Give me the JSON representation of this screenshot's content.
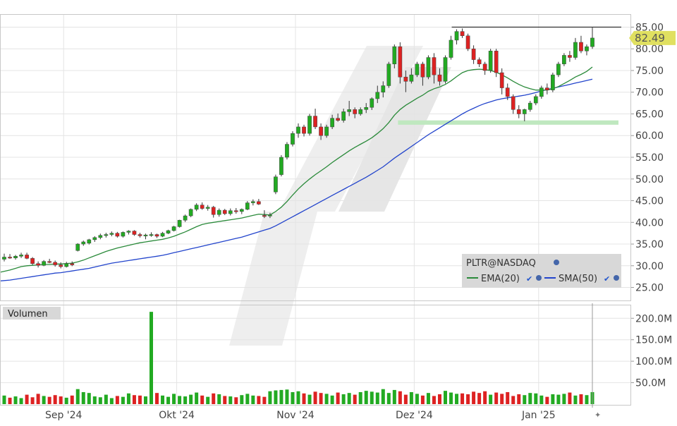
{
  "chart_data": {
    "type": "candlestick",
    "symbol": "PLTR@NASDAQ",
    "last_price": "82.49",
    "colors": {
      "up": "#22aa22",
      "down": "#dd2222",
      "ema": "#2a8a3a",
      "sma": "#2244cc",
      "price_label_bg": "#e0e060",
      "support_zone": "#bfe8bf"
    },
    "price_axis": {
      "min": 22,
      "max": 88,
      "ticks": [
        25,
        30,
        35,
        40,
        45,
        50,
        55,
        60,
        65,
        70,
        75,
        80,
        85
      ],
      "tick_labels": [
        "25.00",
        "30.00",
        "35.00",
        "40.00",
        "45.00",
        "50.00",
        "55.00",
        "60.00",
        "65.00",
        "70.00",
        "75.00",
        "80.00",
        "85.00"
      ]
    },
    "volume_axis": {
      "min": 0,
      "max": 230,
      "ticks": [
        50,
        100,
        150,
        200
      ],
      "tick_labels": [
        "50.0M",
        "100.0M",
        "150.0M",
        "200.0M"
      ]
    },
    "time_axis": {
      "labels": [
        "Sep '24",
        "Okt '24",
        "Nov '24",
        "Dez '24",
        "Jan '25"
      ],
      "label_index": [
        10,
        30,
        51,
        72,
        94
      ]
    },
    "legend": {
      "title": "PLTR@NASDAQ",
      "series": [
        "EMA(20)",
        "SMA(50)"
      ]
    },
    "volume_panel_label": "Volumen",
    "resistance_line": 85.0,
    "support_zone": [
      62.5,
      63.5
    ],
    "candles": [
      [
        31.5,
        32.8,
        31.0,
        32.0
      ],
      [
        32.0,
        32.7,
        31.6,
        31.8
      ],
      [
        31.8,
        32.5,
        31.4,
        32.2
      ],
      [
        32.2,
        33.0,
        31.8,
        32.5
      ],
      [
        32.5,
        33.0,
        31.5,
        31.7
      ],
      [
        31.7,
        32.0,
        30.2,
        30.5
      ],
      [
        30.5,
        31.0,
        29.6,
        30.1
      ],
      [
        30.1,
        31.3,
        29.9,
        31.0
      ],
      [
        31.0,
        31.6,
        30.6,
        30.8
      ],
      [
        30.8,
        31.2,
        29.8,
        30.2
      ],
      [
        30.2,
        30.8,
        29.4,
        29.8
      ],
      [
        29.8,
        30.9,
        29.6,
        30.5
      ],
      [
        30.5,
        31.0,
        29.9,
        30.2
      ],
      [
        33.5,
        35.2,
        33.3,
        35.0
      ],
      [
        35.0,
        35.8,
        34.6,
        35.5
      ],
      [
        35.2,
        36.2,
        34.9,
        36.0
      ],
      [
        36.0,
        36.8,
        35.5,
        36.5
      ],
      [
        36.5,
        37.4,
        36.1,
        37.0
      ],
      [
        37.0,
        37.6,
        36.5,
        37.2
      ],
      [
        37.2,
        37.9,
        36.8,
        37.5
      ],
      [
        37.5,
        37.8,
        36.5,
        36.8
      ],
      [
        36.8,
        37.9,
        36.5,
        37.7
      ],
      [
        37.7,
        38.2,
        37.2,
        38.0
      ],
      [
        38.0,
        38.2,
        36.9,
        37.2
      ],
      [
        37.2,
        37.6,
        36.5,
        36.9
      ],
      [
        36.9,
        37.4,
        36.1,
        37.1
      ],
      [
        37.1,
        37.7,
        36.7,
        37.2
      ],
      [
        37.2,
        37.4,
        36.4,
        36.8
      ],
      [
        36.8,
        37.8,
        36.6,
        37.5
      ],
      [
        37.5,
        38.3,
        37.3,
        38.1
      ],
      [
        38.1,
        39.2,
        37.9,
        39.0
      ],
      [
        39.0,
        40.6,
        38.8,
        40.5
      ],
      [
        40.5,
        41.8,
        40.1,
        41.5
      ],
      [
        41.5,
        43.2,
        41.2,
        43.0
      ],
      [
        43.0,
        44.4,
        42.6,
        44.0
      ],
      [
        44.0,
        44.6,
        42.9,
        43.2
      ],
      [
        43.2,
        44.0,
        42.7,
        43.5
      ],
      [
        43.5,
        43.8,
        41.1,
        41.8
      ],
      [
        41.8,
        43.2,
        41.3,
        42.8
      ],
      [
        42.8,
        43.1,
        41.7,
        42.0
      ],
      [
        42.0,
        43.2,
        41.6,
        42.7
      ],
      [
        42.7,
        43.3,
        42.0,
        42.5
      ],
      [
        42.5,
        43.2,
        41.9,
        43.0
      ],
      [
        43.0,
        44.9,
        42.8,
        44.5
      ],
      [
        44.5,
        45.3,
        43.9,
        44.8
      ],
      [
        44.8,
        45.4,
        44.0,
        44.2
      ],
      [
        41.6,
        42.8,
        41.0,
        41.5
      ],
      [
        41.5,
        42.2,
        41.0,
        41.7
      ],
      [
        47.0,
        51.0,
        46.5,
        50.5
      ],
      [
        51.0,
        55.5,
        50.6,
        55.0
      ],
      [
        55.0,
        58.5,
        54.5,
        58.0
      ],
      [
        58.0,
        61.0,
        57.5,
        60.5
      ],
      [
        60.5,
        62.8,
        59.5,
        62.0
      ],
      [
        62.0,
        62.5,
        59.8,
        60.5
      ],
      [
        60.5,
        65.0,
        60.0,
        64.5
      ],
      [
        64.5,
        66.2,
        61.5,
        62.0
      ],
      [
        62.0,
        62.8,
        59.0,
        60.0
      ],
      [
        60.0,
        62.5,
        59.5,
        62.0
      ],
      [
        62.0,
        64.8,
        61.5,
        64.0
      ],
      [
        64.0,
        65.1,
        63.2,
        63.5
      ],
      [
        63.5,
        66.2,
        63.0,
        65.5
      ],
      [
        65.5,
        68.0,
        64.5,
        66.0
      ],
      [
        66.0,
        66.5,
        64.0,
        65.0
      ],
      [
        65.0,
        66.5,
        64.6,
        66.0
      ],
      [
        66.0,
        67.5,
        65.2,
        66.5
      ],
      [
        66.5,
        68.8,
        65.9,
        68.5
      ],
      [
        68.5,
        71.5,
        67.5,
        70.0
      ],
      [
        70.0,
        72.5,
        68.8,
        71.5
      ],
      [
        71.5,
        77.0,
        71.0,
        76.5
      ],
      [
        76.5,
        81.0,
        75.5,
        80.5
      ],
      [
        80.5,
        81.5,
        72.0,
        73.5
      ],
      [
        73.5,
        75.0,
        70.0,
        72.5
      ],
      [
        72.5,
        75.5,
        72.0,
        74.0
      ],
      [
        74.0,
        77.0,
        73.5,
        76.5
      ],
      [
        76.5,
        77.0,
        71.5,
        73.5
      ],
      [
        73.5,
        78.5,
        73.0,
        78.0
      ],
      [
        78.0,
        79.0,
        72.0,
        74.0
      ],
      [
        74.0,
        75.5,
        71.5,
        72.5
      ],
      [
        72.5,
        78.5,
        72.0,
        78.0
      ],
      [
        78.0,
        83.0,
        77.5,
        82.0
      ],
      [
        82.0,
        84.5,
        81.0,
        84.0
      ],
      [
        84.0,
        84.7,
        82.5,
        83.0
      ],
      [
        83.0,
        83.5,
        79.5,
        80.0
      ],
      [
        80.0,
        80.8,
        76.5,
        77.5
      ],
      [
        77.5,
        78.0,
        75.8,
        76.5
      ],
      [
        76.5,
        77.0,
        74.0,
        75.0
      ],
      [
        75.0,
        80.0,
        74.5,
        79.5
      ],
      [
        79.5,
        80.0,
        73.5,
        74.5
      ],
      [
        74.5,
        75.5,
        69.5,
        71.0
      ],
      [
        71.0,
        72.0,
        68.2,
        69.0
      ],
      [
        69.0,
        69.5,
        65.0,
        66.0
      ],
      [
        66.0,
        67.0,
        64.0,
        65.0
      ],
      [
        65.0,
        66.2,
        63.3,
        66.0
      ],
      [
        66.0,
        68.0,
        65.5,
        67.5
      ],
      [
        67.5,
        69.5,
        67.0,
        69.0
      ],
      [
        69.0,
        71.5,
        68.5,
        71.0
      ],
      [
        71.0,
        72.0,
        69.5,
        70.5
      ],
      [
        70.5,
        74.5,
        70.0,
        74.0
      ],
      [
        74.0,
        77.0,
        73.5,
        76.5
      ],
      [
        76.5,
        79.0,
        76.0,
        78.5
      ],
      [
        78.5,
        79.5,
        77.0,
        78.0
      ],
      [
        78.0,
        82.5,
        77.5,
        81.5
      ],
      [
        81.5,
        83.0,
        79.0,
        79.5
      ],
      [
        79.5,
        81.0,
        78.5,
        80.5
      ],
      [
        80.5,
        84.9,
        80.0,
        82.49
      ]
    ],
    "ema20": [
      28.5,
      29.0,
      29.4,
      29.8,
      30.0,
      30.1,
      30.2,
      30.3,
      30.3,
      30.4,
      30.4,
      30.5,
      30.6,
      30.9,
      31.3,
      31.8,
      32.3,
      32.8,
      33.3,
      33.7,
      34.1,
      34.4,
      34.7,
      35.0,
      35.3,
      35.5,
      35.7,
      35.9,
      36.1,
      36.4,
      36.8,
      37.3,
      37.8,
      38.4,
      39.0,
      39.5,
      39.8,
      40.0,
      40.2,
      40.4,
      40.6,
      40.8,
      41.0,
      41.3,
      41.6,
      41.9,
      41.8,
      41.7,
      42.5,
      43.5,
      44.8,
      46.3,
      47.7,
      48.9,
      50.0,
      51.0,
      51.9,
      52.8,
      53.8,
      54.7,
      55.6,
      56.5,
      57.3,
      58.0,
      58.7,
      59.5,
      60.5,
      61.6,
      63.0,
      64.7,
      66.0,
      67.0,
      67.8,
      68.6,
      69.3,
      70.2,
      70.8,
      71.2,
      71.8,
      72.6,
      73.6,
      74.5,
      75.0,
      75.2,
      75.3,
      75.2,
      75.0,
      74.6,
      74.0,
      73.3,
      72.5,
      71.8,
      71.2,
      70.8,
      70.5,
      70.5,
      70.5,
      70.8,
      71.3,
      72.0,
      72.7,
      73.5,
      74.1,
      74.8,
      75.8
    ],
    "sma50": [
      26.5,
      26.7,
      26.9,
      27.1,
      27.3,
      27.5,
      27.7,
      27.9,
      28.1,
      28.3,
      28.4,
      28.6,
      28.8,
      29.0,
      29.2,
      29.4,
      29.7,
      30.0,
      30.3,
      30.6,
      30.8,
      31.0,
      31.2,
      31.4,
      31.6,
      31.8,
      32.0,
      32.2,
      32.4,
      32.7,
      33.0,
      33.3,
      33.6,
      33.9,
      34.2,
      34.5,
      34.8,
      35.1,
      35.4,
      35.7,
      36.0,
      36.3,
      36.6,
      37.0,
      37.4,
      37.8,
      38.2,
      38.6,
      39.2,
      39.9,
      40.6,
      41.3,
      42.0,
      42.7,
      43.4,
      44.1,
      44.8,
      45.5,
      46.2,
      46.9,
      47.6,
      48.3,
      49.0,
      49.7,
      50.4,
      51.2,
      52.0,
      52.8,
      53.8,
      54.8,
      55.7,
      56.6,
      57.5,
      58.4,
      59.3,
      60.2,
      61.0,
      61.8,
      62.6,
      63.4,
      64.2,
      65.0,
      65.7,
      66.3,
      66.9,
      67.4,
      67.8,
      68.2,
      68.5,
      68.7,
      68.9,
      69.1,
      69.3,
      69.6,
      69.9,
      70.3,
      70.6,
      70.9,
      71.2,
      71.5,
      71.8,
      72.1,
      72.4,
      72.7,
      73.0
    ],
    "volume": [
      20,
      15,
      18,
      14,
      22,
      16,
      24,
      19,
      17,
      21,
      18,
      15,
      20,
      35,
      28,
      26,
      18,
      16,
      22,
      14,
      19,
      17,
      25,
      21,
      20,
      18,
      215,
      26,
      20,
      17,
      24,
      19,
      18,
      22,
      27,
      20,
      17,
      25,
      23,
      19,
      18,
      16,
      21,
      24,
      20,
      19,
      17,
      30,
      32,
      33,
      34,
      28,
      30,
      25,
      22,
      29,
      26,
      24,
      20,
      27,
      23,
      26,
      22,
      28,
      31,
      29,
      27,
      35,
      26,
      33,
      30,
      22,
      28,
      24,
      20,
      26,
      19,
      23,
      31,
      27,
      24,
      25,
      23,
      29,
      26,
      30,
      22,
      27,
      24,
      28,
      19,
      23,
      21,
      26,
      25,
      20,
      17,
      23,
      22,
      24,
      27,
      20,
      23,
      21,
      28
    ]
  }
}
